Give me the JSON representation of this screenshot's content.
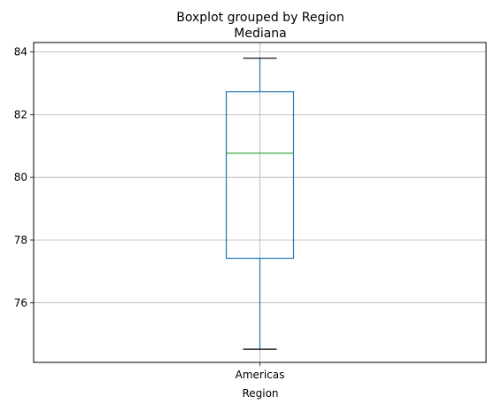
{
  "chart_data": {
    "type": "box",
    "suptitle": "Boxplot grouped by Region",
    "title": "Mediana",
    "xlabel": "Region",
    "ylabel": "",
    "categories": [
      "Americas"
    ],
    "boxes": [
      {
        "category": "Americas",
        "whisker_low": 74.52,
        "q1": 77.42,
        "median": 80.77,
        "q3": 82.73,
        "whisker_high": 83.8
      }
    ],
    "ylim": [
      74.1,
      84.3
    ],
    "yticks": [
      76,
      78,
      80,
      82,
      84
    ],
    "grid": true,
    "colors": {
      "box": "#1f77b4",
      "median": "#2ca02c",
      "caps": "#000000",
      "grid": "#b0b0b0"
    }
  }
}
